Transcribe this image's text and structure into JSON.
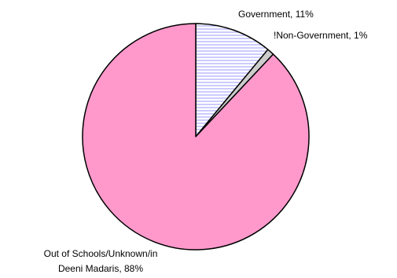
{
  "chart_data": {
    "type": "pie",
    "slices": [
      {
        "label": "Government",
        "value": 11,
        "value_text": "11%",
        "color": "#ffffff",
        "pattern": "horizontal-stripes",
        "stripe_color": "#9999ff"
      },
      {
        "label": "!Non-Government",
        "value": 1,
        "value_text": "1%",
        "color": "#cccccc",
        "pattern": "none"
      },
      {
        "label": "Out of Schools/Unknown/in Deeni Madaris",
        "label_lines": [
          "Out of Schools/Unknown/in",
          "Deeni Madaris, 88%"
        ],
        "value": 88,
        "value_text": "88%",
        "color": "#ff99cc",
        "pattern": "none"
      }
    ],
    "start_angle": "12 o'clock",
    "direction": "clockwise",
    "legend": "none",
    "outline_color": "#000000"
  },
  "labels": {
    "government": "Government, 11%",
    "non_government": "!Non-Government, 1%",
    "out_line1": "Out of Schools/Unknown/in",
    "out_line2": "Deeni Madaris, 88%"
  }
}
